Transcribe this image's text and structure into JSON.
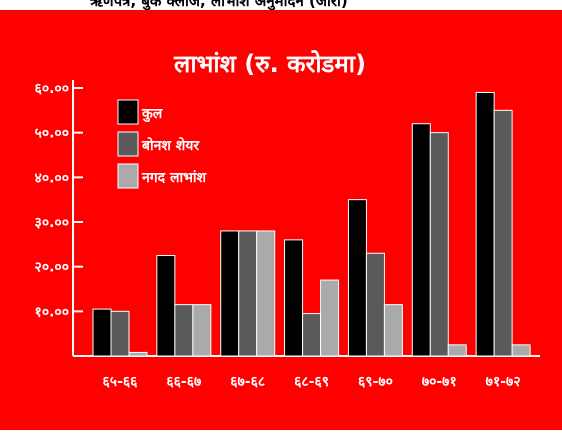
{
  "banner_text": "ऋणपत्र, बुक क्लोज, लाभांश अनुमोदन (जारी)",
  "colors": {
    "background": "#ff0000",
    "axis": "#ffffff",
    "text": "#ffffff",
    "series": [
      "#000000",
      "#5a5a5a",
      "#aaaaaa"
    ]
  },
  "chart_data": {
    "type": "bar",
    "title": "लाभांश (रु. करोडमा)",
    "xlabel": "",
    "ylabel": "",
    "ylim": [
      0,
      60
    ],
    "y_ticks": [
      10,
      20,
      30,
      40,
      50,
      60
    ],
    "y_tick_labels": [
      "१०.००",
      "२०.००",
      "३०.००",
      "४०.००",
      "५०.००",
      "६०.००"
    ],
    "categories": [
      "६५-६६",
      "६६-६७",
      "६७-६८",
      "६८-६९",
      "६९-७०",
      "७०-७१",
      "७१-७२"
    ],
    "legend_position": "top-left",
    "series": [
      {
        "name": "कुल",
        "values": [
          10.5,
          22.5,
          28,
          26,
          35,
          52,
          59
        ]
      },
      {
        "name": "बोनश शेयर",
        "values": [
          10,
          11.5,
          28,
          9.5,
          23,
          50,
          55
        ]
      },
      {
        "name": "नगद लाभांश",
        "values": [
          0.8,
          11.5,
          28,
          17,
          11.5,
          2.5,
          2.5
        ]
      }
    ]
  }
}
